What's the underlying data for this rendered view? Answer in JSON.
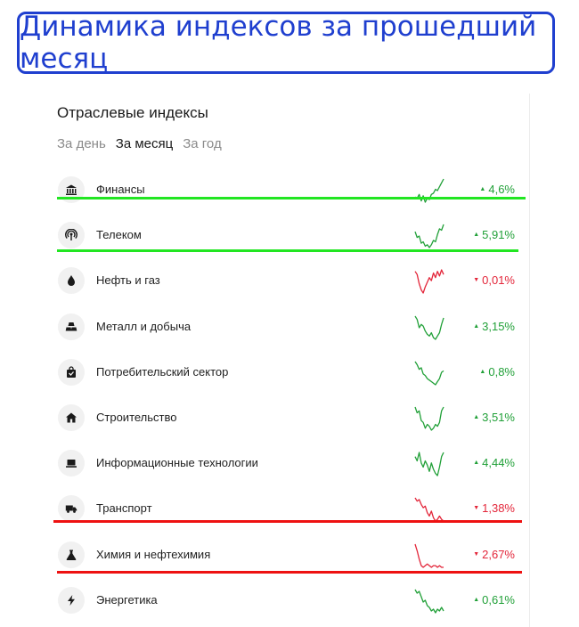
{
  "banner": {
    "title": "Динамика индексов за прошедший месяц"
  },
  "panel": {
    "title": "Отраслевые индексы",
    "tabs": [
      {
        "label": "За день",
        "active": false
      },
      {
        "label": "За месяц",
        "active": true
      },
      {
        "label": "За год",
        "active": false
      }
    ]
  },
  "colors": {
    "up": "#21a038",
    "down": "#e3263a",
    "banner": "#1f3fcf",
    "highlight_green": "#22e622",
    "highlight_red": "#ee1111"
  },
  "indices": [
    {
      "name": "Финансы",
      "icon": "bank-icon",
      "change": "4,6%",
      "direction": "up",
      "spark": [
        6,
        5,
        8,
        3,
        7,
        2,
        5,
        4,
        8,
        9,
        12,
        11,
        14,
        17,
        20
      ]
    },
    {
      "name": "Телеком",
      "icon": "antenna-icon",
      "change": "5,91%",
      "direction": "up",
      "spark": [
        13,
        9,
        10,
        5,
        6,
        3,
        4,
        2,
        4,
        7,
        6,
        11,
        15,
        14,
        18
      ]
    },
    {
      "name": "Нефть и газ",
      "icon": "oil-drop-icon",
      "change": "0,01%",
      "direction": "down",
      "spark": [
        16,
        14,
        8,
        4,
        2,
        6,
        9,
        12,
        10,
        15,
        12,
        16,
        13,
        17,
        14
      ]
    },
    {
      "name": "Металл и добыча",
      "icon": "ingots-icon",
      "change": "3,15%",
      "direction": "up",
      "spark": [
        17,
        15,
        10,
        12,
        11,
        8,
        6,
        5,
        7,
        4,
        3,
        5,
        7,
        12,
        16
      ]
    },
    {
      "name": "Потребительский сектор",
      "icon": "shopping-bag-icon",
      "change": "0,8%",
      "direction": "up",
      "spark": [
        18,
        16,
        13,
        14,
        10,
        9,
        7,
        6,
        5,
        4,
        3,
        5,
        7,
        11,
        12
      ]
    },
    {
      "name": "Строительство",
      "icon": "house-icon",
      "change": "3,51%",
      "direction": "up",
      "spark": [
        17,
        14,
        15,
        10,
        9,
        6,
        8,
        7,
        5,
        6,
        8,
        7,
        9,
        15,
        17
      ]
    },
    {
      "name": "Информационные технологии",
      "icon": "laptop-icon",
      "change": "4,44%",
      "direction": "up",
      "spark": [
        14,
        12,
        16,
        11,
        9,
        12,
        10,
        7,
        11,
        8,
        6,
        5,
        9,
        14,
        16
      ]
    },
    {
      "name": "Транспорт",
      "icon": "truck-icon",
      "change": "1,38%",
      "direction": "down",
      "spark": [
        18,
        16,
        17,
        14,
        12,
        13,
        9,
        7,
        10,
        6,
        4,
        5,
        7,
        5,
        4
      ]
    },
    {
      "name": "Химия и нефтехимия",
      "icon": "flask-icon",
      "change": "2,67%",
      "direction": "down",
      "spark": [
        18,
        14,
        9,
        5,
        4,
        5,
        6,
        5,
        4,
        5,
        5,
        4,
        5,
        4,
        4
      ]
    },
    {
      "name": "Энергетика",
      "icon": "lightning-icon",
      "change": "0,61%",
      "direction": "up",
      "spark": [
        16,
        14,
        15,
        12,
        9,
        10,
        7,
        6,
        4,
        5,
        3,
        5,
        4,
        6,
        4
      ]
    }
  ]
}
